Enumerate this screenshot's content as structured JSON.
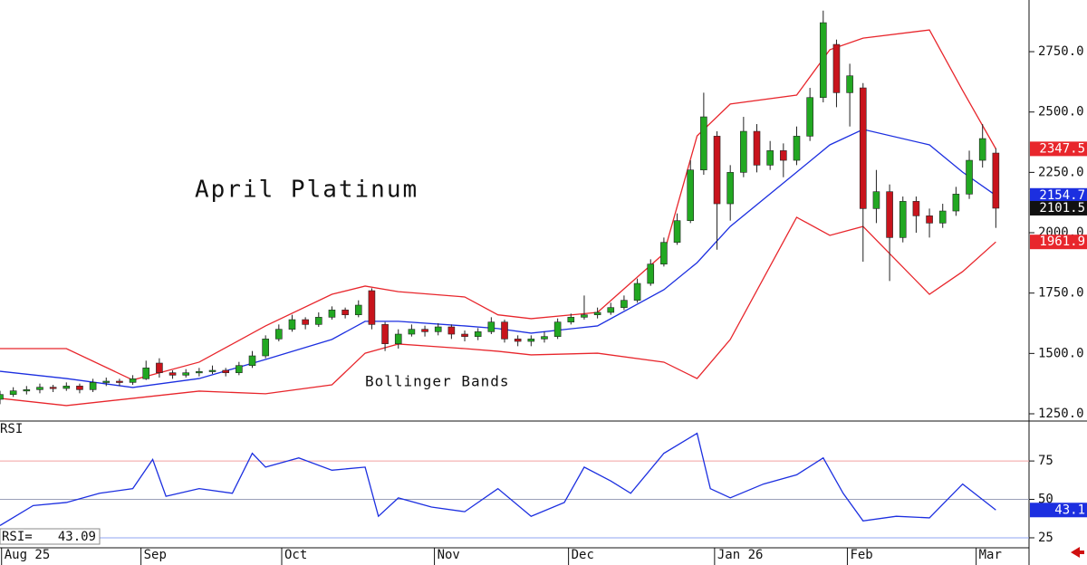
{
  "chart_data": [
    {
      "type": "candlestick",
      "title": "April Platinum",
      "annotation": "Bollinger Bands",
      "up_color": "#22a822",
      "down_color": "#c8141c",
      "x": [
        0,
        2,
        4,
        6,
        8,
        10,
        12,
        14,
        16,
        18,
        20,
        22,
        24,
        26,
        28,
        30,
        32,
        34,
        36,
        38,
        40,
        42,
        44,
        46,
        48,
        50,
        52,
        54,
        56,
        58,
        60,
        62,
        64,
        66,
        68,
        70,
        72,
        74,
        76,
        78,
        80,
        82,
        84,
        86,
        88,
        90,
        92,
        94,
        96,
        98,
        100,
        102,
        104,
        106,
        108,
        110,
        112,
        114,
        116,
        118,
        120,
        122,
        124,
        126,
        128,
        130,
        132,
        134,
        136,
        138,
        140,
        142,
        144,
        146,
        148,
        150
      ],
      "open": [
        1310,
        1330,
        1345,
        1350,
        1360,
        1355,
        1365,
        1350,
        1380,
        1385,
        1380,
        1395,
        1460,
        1420,
        1410,
        1420,
        1425,
        1430,
        1420,
        1450,
        1490,
        1560,
        1600,
        1640,
        1620,
        1650,
        1680,
        1660,
        1760,
        1620,
        1540,
        1580,
        1600,
        1590,
        1610,
        1580,
        1570,
        1590,
        1630,
        1560,
        1550,
        1560,
        1570,
        1630,
        1650,
        1660,
        1670,
        1690,
        1720,
        1790,
        1870,
        1960,
        2050,
        2260,
        2400,
        2120,
        2250,
        2420,
        2280,
        2340,
        2300,
        2400,
        2560,
        2780,
        2580,
        2600,
        2100,
        2170,
        1980,
        2130,
        2070,
        2040,
        2090,
        2160,
        2300,
        2330
      ],
      "high": [
        1345,
        1360,
        1365,
        1375,
        1370,
        1380,
        1375,
        1395,
        1400,
        1395,
        1410,
        1470,
        1480,
        1430,
        1435,
        1440,
        1450,
        1440,
        1465,
        1510,
        1575,
        1620,
        1660,
        1650,
        1670,
        1695,
        1690,
        1720,
        1770,
        1630,
        1600,
        1620,
        1615,
        1625,
        1620,
        1595,
        1605,
        1650,
        1640,
        1575,
        1575,
        1590,
        1645,
        1665,
        1740,
        1690,
        1710,
        1740,
        1810,
        1890,
        1980,
        2080,
        2300,
        2580,
        2420,
        2280,
        2480,
        2450,
        2380,
        2370,
        2440,
        2600,
        2920,
        2800,
        2700,
        2620,
        2260,
        2200,
        2150,
        2150,
        2100,
        2120,
        2190,
        2340,
        2450,
        2350
      ],
      "low": [
        1290,
        1320,
        1330,
        1335,
        1340,
        1345,
        1335,
        1340,
        1365,
        1365,
        1370,
        1390,
        1400,
        1395,
        1400,
        1405,
        1415,
        1405,
        1410,
        1440,
        1480,
        1550,
        1590,
        1600,
        1610,
        1640,
        1645,
        1650,
        1600,
        1510,
        1520,
        1570,
        1570,
        1575,
        1560,
        1550,
        1555,
        1580,
        1545,
        1530,
        1530,
        1545,
        1560,
        1620,
        1640,
        1645,
        1660,
        1680,
        1710,
        1780,
        1860,
        1950,
        2040,
        2240,
        1930,
        2050,
        2230,
        2250,
        2260,
        2230,
        2280,
        2380,
        2540,
        2520,
        2440,
        1880,
        2040,
        1800,
        1960,
        2000,
        1980,
        2020,
        2070,
        2140,
        2270,
        2020
      ],
      "close": [
        1330,
        1345,
        1350,
        1360,
        1355,
        1365,
        1350,
        1380,
        1385,
        1380,
        1395,
        1440,
        1420,
        1410,
        1420,
        1425,
        1430,
        1420,
        1450,
        1490,
        1560,
        1600,
        1640,
        1620,
        1650,
        1680,
        1660,
        1700,
        1620,
        1540,
        1580,
        1600,
        1590,
        1610,
        1580,
        1570,
        1590,
        1630,
        1560,
        1550,
        1560,
        1570,
        1630,
        1650,
        1660,
        1670,
        1690,
        1720,
        1790,
        1870,
        1960,
        2050,
        2260,
        2480,
        2120,
        2250,
        2420,
        2280,
        2340,
        2300,
        2400,
        2560,
        2870,
        2580,
        2650,
        2100,
        2170,
        1980,
        2130,
        2070,
        2040,
        2090,
        2160,
        2300,
        2390,
        2101.5
      ],
      "band_x": [
        0,
        10,
        20,
        30,
        40,
        50,
        55,
        60,
        70,
        75,
        80,
        90,
        100,
        105,
        110,
        120,
        125,
        130,
        140,
        145,
        150
      ],
      "bands": [
        {
          "color": "#e8262c",
          "values": [
            1520,
            1520,
            1390,
            1464,
            1614,
            1745,
            1779,
            1756,
            1734,
            1660,
            1644,
            1670,
            1914,
            2401,
            2533,
            2570,
            2758,
            2806,
            2840,
            2589,
            2347.5
          ]
        },
        {
          "color": "#1c2fe0",
          "values": [
            1426,
            1396,
            1359,
            1396,
            1475,
            1558,
            1633,
            1633,
            1614,
            1603,
            1584,
            1614,
            1764,
            1876,
            2026,
            2251,
            2364,
            2428,
            2364,
            2251,
            2154.7
          ]
        },
        {
          "color": "#e8262c",
          "values": [
            1314,
            1284,
            1314,
            1344,
            1333,
            1370,
            1501,
            1539,
            1520,
            1509,
            1494,
            1501,
            1464,
            1396,
            1558,
            2064,
            1989,
            2026,
            1745,
            1839,
            1961.9
          ]
        }
      ],
      "tags": [
        {
          "value": 2347.5,
          "color": "#e8262c"
        },
        {
          "value": 2154.7,
          "color": "#1c2fe0"
        },
        {
          "value": 2101.5,
          "color": "#111111"
        },
        {
          "value": 1961.9,
          "color": "#e8262c"
        }
      ],
      "xlim": [
        0,
        155
      ],
      "ylim": [
        1220,
        2964
      ],
      "yticks": [
        {
          "value": 1250,
          "label": "1250.0"
        },
        {
          "value": 1500,
          "label": "1500.0"
        },
        {
          "value": 1750,
          "label": "1750.0"
        },
        {
          "value": 2000,
          "label": "2000.0"
        },
        {
          "value": 2250,
          "label": "2250.0"
        },
        {
          "value": 2500,
          "label": "2500.0"
        },
        {
          "value": 2750,
          "label": "2750.0"
        }
      ],
      "xticks": [
        {
          "value": 1.6,
          "label": "Aug 25"
        },
        {
          "value": 22.6,
          "label": "Sep"
        },
        {
          "value": 43.8,
          "label": "Oct"
        },
        {
          "value": 66.8,
          "label": "Nov"
        },
        {
          "value": 87,
          "label": "Dec"
        },
        {
          "value": 109,
          "label": "Jan 26"
        },
        {
          "value": 129,
          "label": "Feb"
        },
        {
          "value": 148.4,
          "label": "Mar"
        }
      ]
    },
    {
      "type": "line",
      "title": "RSI",
      "color": "#1c2fe0",
      "readout_prefix": "RSI=",
      "x": [
        0,
        5,
        10,
        15,
        20,
        23,
        25,
        30,
        35,
        38,
        40,
        45,
        50,
        55,
        57,
        60,
        65,
        70,
        75,
        80,
        85,
        88,
        92,
        95,
        100,
        105,
        107,
        110,
        115,
        120,
        124,
        127,
        130,
        135,
        140,
        145,
        150
      ],
      "values": [
        33,
        46,
        48,
        54,
        57,
        76,
        52,
        57,
        54,
        80,
        71,
        77,
        69,
        71,
        39,
        51,
        45,
        42,
        57,
        39,
        48,
        71,
        62,
        54,
        80,
        93,
        57,
        51,
        60,
        66,
        77,
        54,
        36,
        39,
        38,
        60,
        43.09
      ],
      "tags": [
        {
          "value": 43.09,
          "label": "43.1",
          "color": "#1c2fe0"
        }
      ],
      "xlim": [
        0,
        155
      ],
      "ylim": [
        18.5,
        101
      ],
      "yticks": [
        25,
        50,
        75
      ],
      "grid_colors": [
        "#8fa6f0",
        "#9aa0b8",
        "#f2a0a0"
      ]
    }
  ]
}
